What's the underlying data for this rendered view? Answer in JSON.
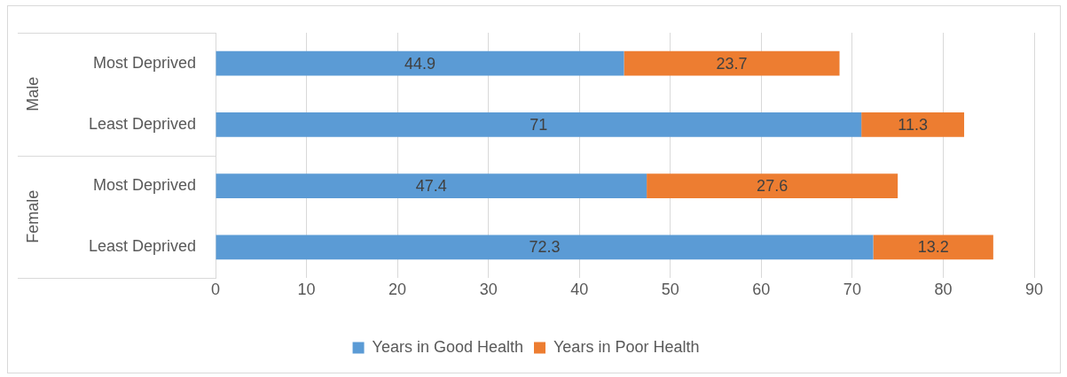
{
  "chart_data": {
    "type": "bar",
    "orientation": "horizontal",
    "stacked": true,
    "categories": [
      "Most Deprived",
      "Least Deprived",
      "Most Deprived",
      "Least Deprived"
    ],
    "series": [
      {
        "name": "Years in Good Health",
        "color": "#5b9bd5",
        "values": [
          44.9,
          71,
          47.4,
          72.3
        ]
      },
      {
        "name": "Years in Poor Health",
        "color": "#ed7d31",
        "values": [
          23.7,
          11.3,
          27.6,
          13.2
        ]
      }
    ],
    "annotations": [
      "Male",
      "Female"
    ],
    "xlim": [
      0,
      90
    ],
    "xticks": [
      0,
      10,
      20,
      30,
      40,
      50,
      60,
      70,
      80,
      90
    ],
    "grid": "x",
    "legend": "bottom",
    "data_labels": true
  }
}
